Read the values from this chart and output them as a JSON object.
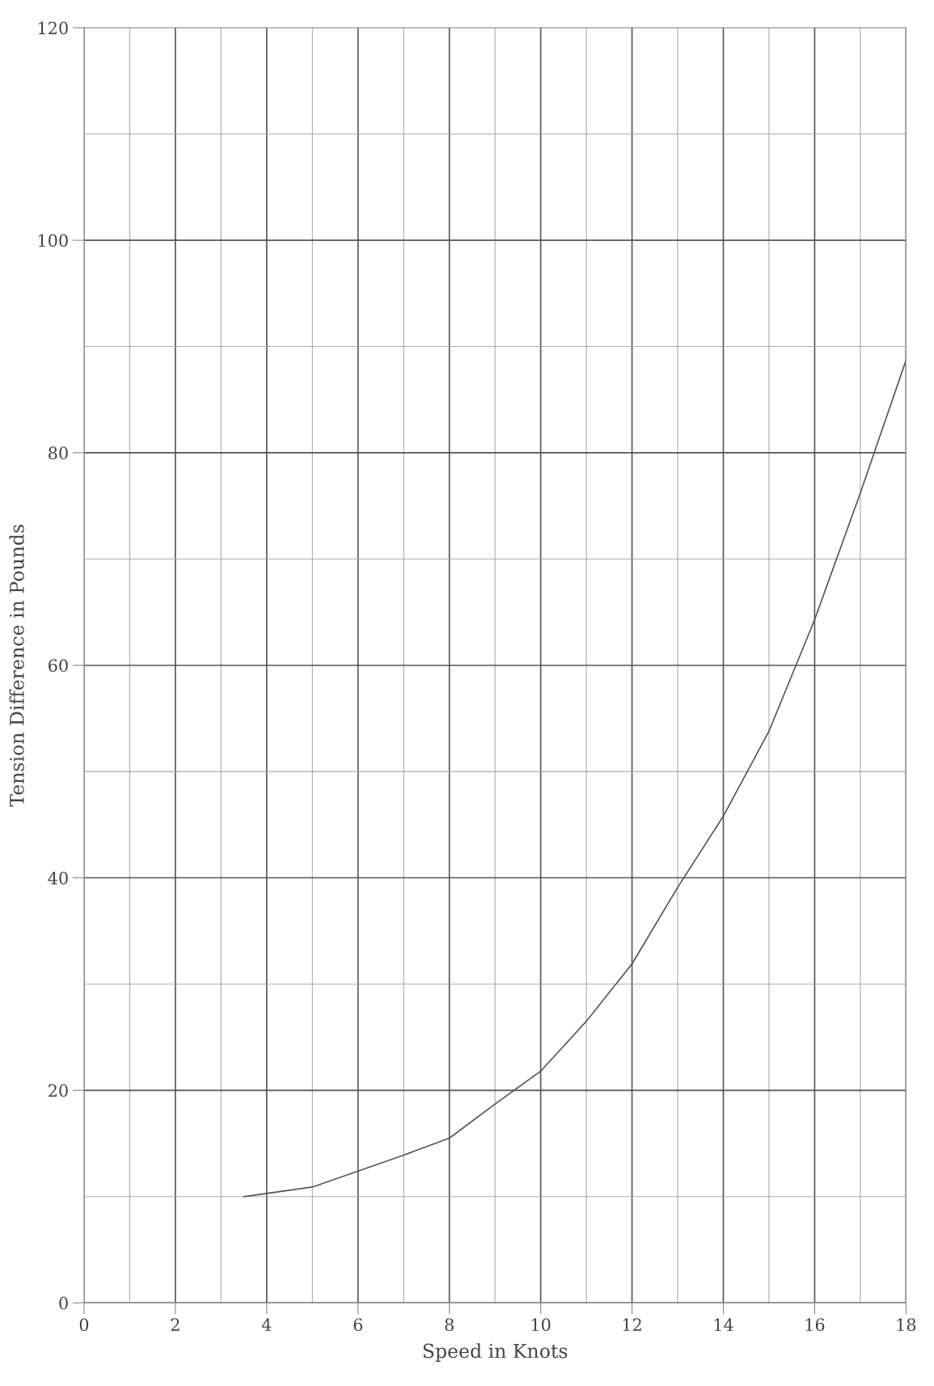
{
  "chart_data": {
    "type": "line",
    "xlabel": "Speed in Knots",
    "ylabel": "Tension Difference in Pounds",
    "x": [
      3.5,
      4,
      5,
      6,
      7,
      8,
      9,
      10,
      11,
      12,
      13,
      14,
      15,
      16,
      17,
      18
    ],
    "series": [
      {
        "color": "#555555",
        "values": [
          10.0,
          10.3,
          10.9,
          12.4,
          13.9,
          15.5,
          18.7,
          21.8,
          26.5,
          31.9,
          39.1,
          45.8,
          53.8,
          64.3,
          76.2,
          88.7
        ]
      }
    ],
    "xlim": [
      0,
      18
    ],
    "xticks": [
      0,
      2,
      4,
      6,
      8,
      10,
      12,
      14,
      16,
      18
    ],
    "ylim": [
      0,
      120
    ],
    "yticks": [
      0,
      20,
      40,
      60,
      80,
      100,
      120
    ],
    "grid": true,
    "marker": "none",
    "line_style": "solid",
    "legend": false
  }
}
